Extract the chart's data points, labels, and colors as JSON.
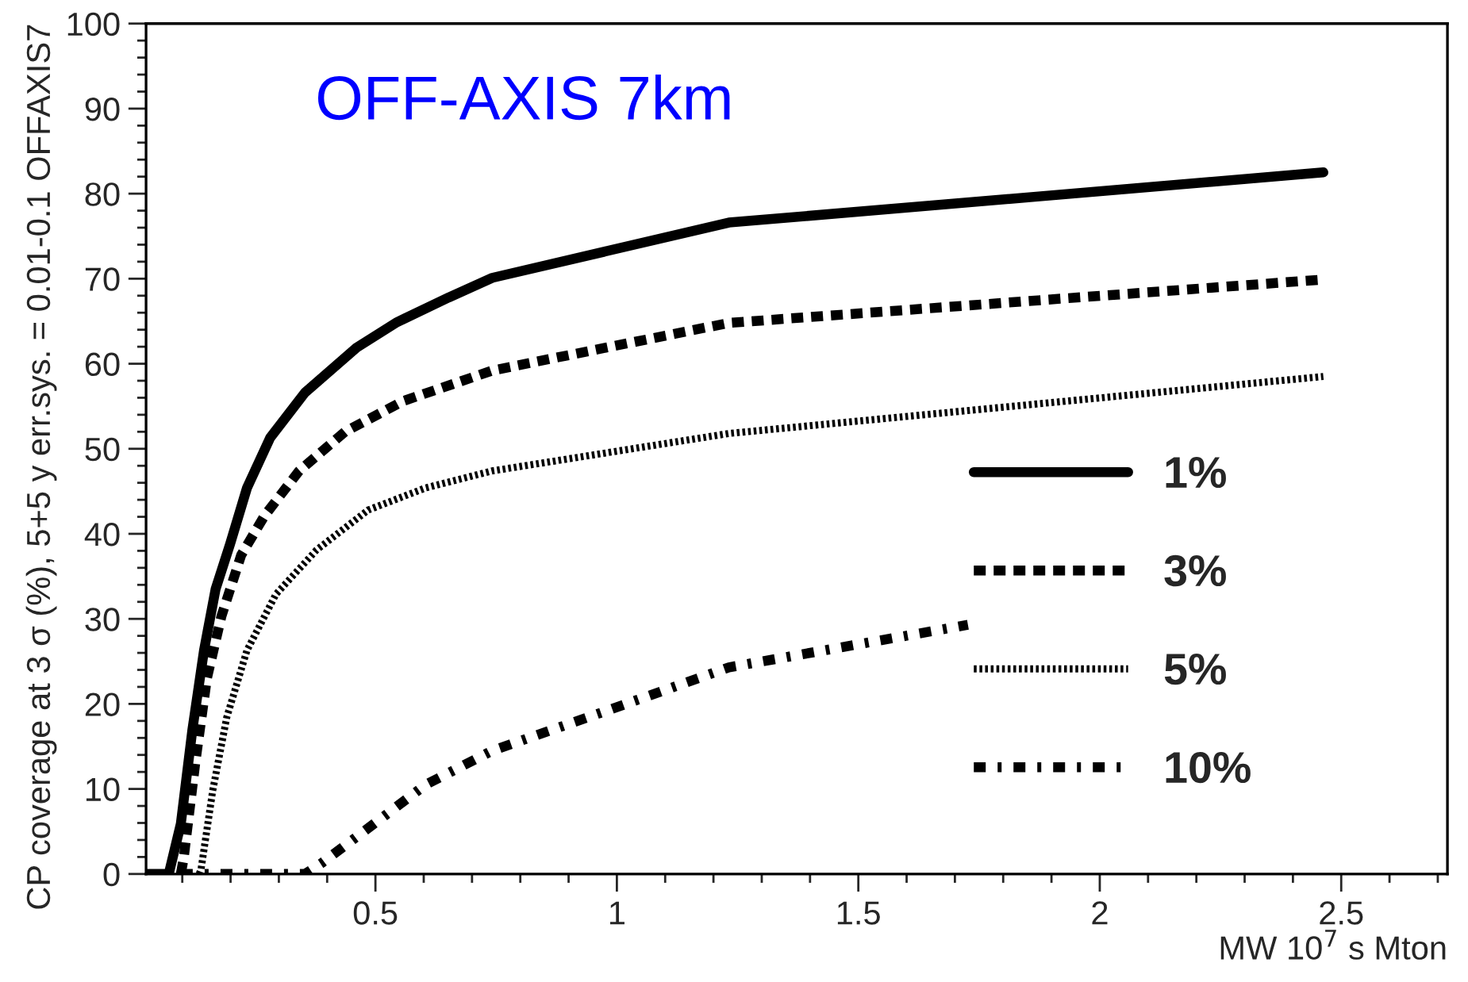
{
  "chart_data": {
    "type": "line",
    "title": "OFF-AXIS 7km",
    "xlabel": "MW 10$^{7}$ s Mton",
    "ylabel": "CP coverage at 3 σ (%), 5+5 y err.sys. = 0.01-0.1 OFFAXIS7",
    "xlim": [
      0.025,
      2.72
    ],
    "ylim": [
      0,
      100
    ],
    "xticks": [
      0.5,
      1,
      1.5,
      2,
      2.5
    ],
    "yticks": [
      0,
      10,
      20,
      30,
      40,
      50,
      60,
      70,
      80,
      90,
      100
    ],
    "grid": false,
    "legend": "bottom right",
    "marker": "none",
    "series": [
      {
        "name": "1%",
        "color": "#000000",
        "line_style": "solid",
        "x": [
          0.025,
          0.072,
          0.097,
          0.121,
          0.145,
          0.169,
          0.199,
          0.234,
          0.282,
          0.354,
          0.461,
          0.545,
          0.652,
          0.742,
          1.232,
          2.463
        ],
        "values": [
          0,
          0,
          5.9,
          17,
          26.3,
          33.5,
          38.8,
          45.4,
          51.3,
          56.6,
          61.9,
          64.9,
          67.8,
          70.1,
          76.6,
          82.5
        ]
      },
      {
        "name": "3%",
        "color": "#000000",
        "line_style": "dashed",
        "x": [
          0.097,
          0.103,
          0.127,
          0.151,
          0.181,
          0.222,
          0.27,
          0.342,
          0.437,
          0.557,
          0.742,
          1.232,
          2.463
        ],
        "values": [
          0,
          1.9,
          13.1,
          23,
          30.3,
          37.5,
          42.1,
          47.4,
          52,
          55.6,
          59.2,
          64.8,
          69.9
        ]
      },
      {
        "name": "5%",
        "color": "#000000",
        "line_style": "dotted",
        "x": [
          0.135,
          0.139,
          0.163,
          0.192,
          0.234,
          0.294,
          0.378,
          0.485,
          0.604,
          0.742,
          1.232,
          2.463
        ],
        "values": [
          0,
          0.6,
          9.8,
          18.4,
          26.3,
          32.9,
          38.1,
          42.8,
          45.4,
          47.4,
          51.8,
          58.5
        ]
      },
      {
        "name": "10%",
        "color": "#000000",
        "line_style": "dashdot",
        "x": [
          0.097,
          0.354,
          0.389,
          0.497,
          0.604,
          0.742,
          0.969,
          1.232,
          1.727
        ],
        "values": [
          0,
          0,
          1.3,
          5.9,
          10.5,
          14.5,
          19,
          24.3,
          29.3
        ]
      }
    ]
  }
}
